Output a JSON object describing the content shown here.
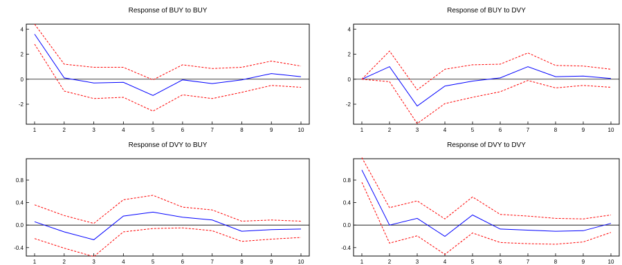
{
  "colors": {
    "response": "#0000ff",
    "bands": "#ff0000",
    "axis": "#000000"
  },
  "chart_data": [
    {
      "type": "line",
      "title": "Response of BUY to BUY",
      "x": [
        1,
        2,
        3,
        4,
        5,
        6,
        7,
        8,
        9,
        10
      ],
      "ylim": [
        -3.6,
        4.4
      ],
      "yticks": [
        "4",
        "2",
        "0",
        "-2"
      ],
      "ytick_values": [
        4,
        2,
        0,
        -2
      ],
      "series": [
        {
          "role": "response",
          "values": [
            3.6,
            0.1,
            -0.3,
            -0.25,
            -1.3,
            -0.05,
            -0.35,
            -0.05,
            0.45,
            0.2
          ]
        },
        {
          "role": "upper",
          "values": [
            4.4,
            1.2,
            0.95,
            0.95,
            -0.05,
            1.15,
            0.85,
            0.95,
            1.45,
            1.05
          ]
        },
        {
          "role": "lower",
          "values": [
            2.8,
            -0.95,
            -1.55,
            -1.45,
            -2.55,
            -1.25,
            -1.55,
            -1.05,
            -0.5,
            -0.65
          ]
        }
      ]
    },
    {
      "type": "line",
      "title": "Response of BUY to DVY",
      "x": [
        1,
        2,
        3,
        4,
        5,
        6,
        7,
        8,
        9,
        10
      ],
      "ylim": [
        -3.6,
        4.4
      ],
      "yticks": [
        "4",
        "2",
        "0",
        "-2"
      ],
      "ytick_values": [
        4,
        2,
        0,
        -2
      ],
      "series": [
        {
          "role": "response",
          "values": [
            0,
            1.0,
            -2.15,
            -0.55,
            -0.15,
            0.1,
            1.0,
            0.2,
            0.25,
            0.05
          ]
        },
        {
          "role": "upper",
          "values": [
            0,
            2.25,
            -0.85,
            0.8,
            1.15,
            1.2,
            2.1,
            1.1,
            1.05,
            0.8
          ]
        },
        {
          "role": "lower",
          "values": [
            0,
            -0.2,
            -3.55,
            -1.95,
            -1.45,
            -1.0,
            -0.1,
            -0.7,
            -0.5,
            -0.65
          ]
        }
      ]
    },
    {
      "type": "line",
      "title": "Response of DVY to BUY",
      "x": [
        1,
        2,
        3,
        4,
        5,
        6,
        7,
        8,
        9,
        10
      ],
      "ylim": [
        -0.55,
        1.18
      ],
      "yticks": [
        "0.8",
        "0.4",
        "0.0",
        "-0.4"
      ],
      "ytick_values": [
        0.8,
        0.4,
        0.0,
        -0.4
      ],
      "series": [
        {
          "role": "response",
          "values": [
            0.06,
            -0.12,
            -0.26,
            0.16,
            0.23,
            0.14,
            0.09,
            -0.11,
            -0.08,
            -0.07
          ]
        },
        {
          "role": "upper",
          "values": [
            0.36,
            0.17,
            0.03,
            0.45,
            0.53,
            0.32,
            0.27,
            0.07,
            0.09,
            0.07
          ]
        },
        {
          "role": "lower",
          "values": [
            -0.24,
            -0.41,
            -0.56,
            -0.12,
            -0.06,
            -0.05,
            -0.1,
            -0.29,
            -0.25,
            -0.22
          ]
        }
      ]
    },
    {
      "type": "line",
      "title": "Response of DVY to DVY",
      "x": [
        1,
        2,
        3,
        4,
        5,
        6,
        7,
        8,
        9,
        10
      ],
      "ylim": [
        -0.55,
        1.18
      ],
      "yticks": [
        "0.8",
        "0.4",
        "0.0",
        "-0.4"
      ],
      "ytick_values": [
        0.8,
        0.4,
        0.0,
        -0.4
      ],
      "series": [
        {
          "role": "response",
          "values": [
            0.98,
            0.0,
            0.12,
            -0.2,
            0.18,
            -0.07,
            -0.09,
            -0.11,
            -0.1,
            0.03
          ]
        },
        {
          "role": "upper",
          "values": [
            1.2,
            0.31,
            0.43,
            0.11,
            0.5,
            0.19,
            0.16,
            0.12,
            0.11,
            0.18
          ]
        },
        {
          "role": "lower",
          "values": [
            0.76,
            -0.32,
            -0.19,
            -0.52,
            -0.14,
            -0.31,
            -0.33,
            -0.34,
            -0.3,
            -0.13
          ]
        }
      ]
    }
  ]
}
